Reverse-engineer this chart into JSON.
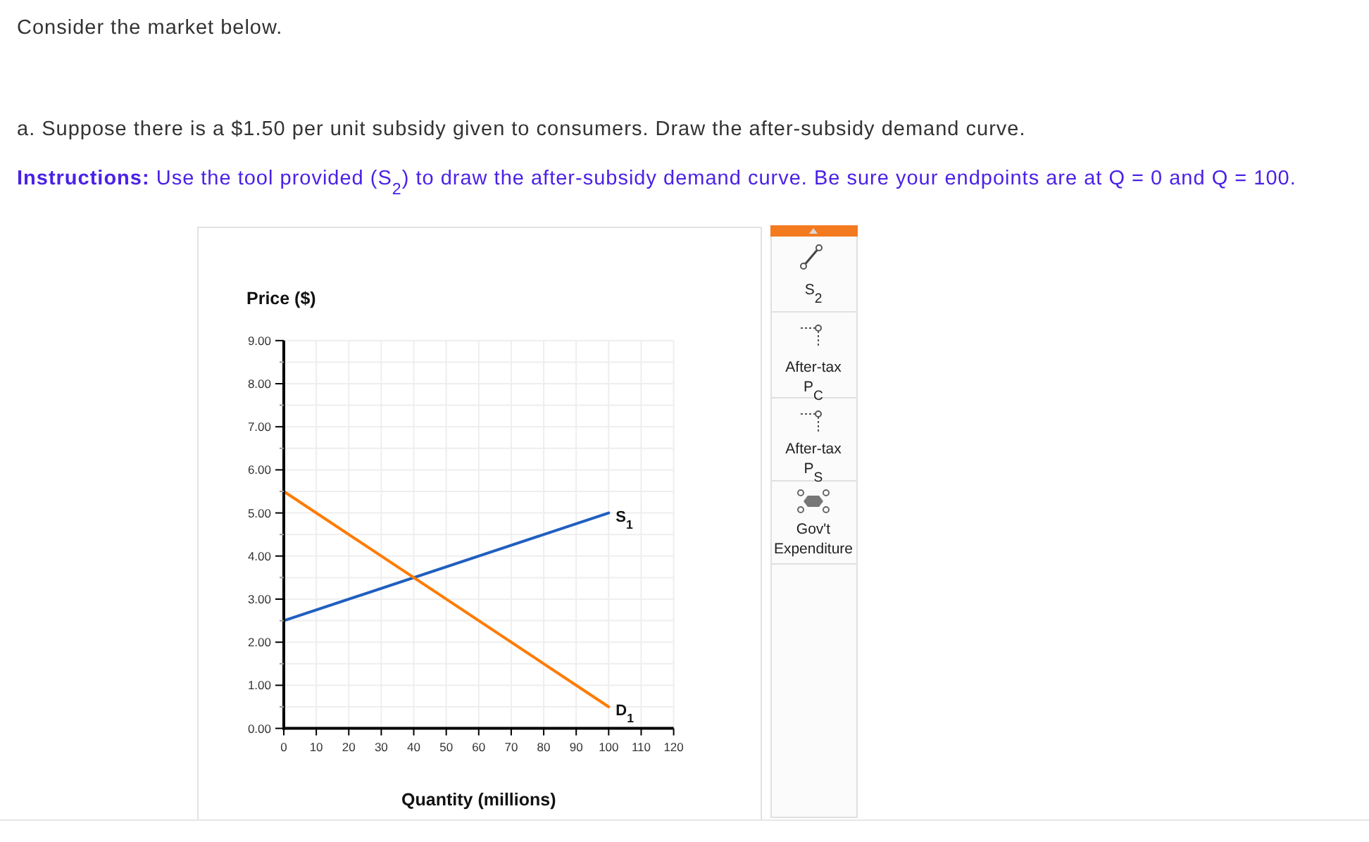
{
  "chart_data": {
    "type": "line",
    "xlabel": "Quantity (millions)",
    "ylabel": "Price ($)",
    "annotations": [
      "Consider the market below.",
      "a. Suppose there is a $1.50 per unit subsidy given to consumers. Draw the after-subsidy demand curve.",
      "Instructions:",
      "Use the tool provided (S$_{2}$) to draw the after-subsidy demand curve. Be sure your endpoints are at Q = 0 and Q = 100.",
      "S$_{2}$",
      "After-tax P$_{C}$",
      "After-tax P$_{S}$",
      "Gov't Expenditure"
    ],
    "x": [
      0,
      100
    ],
    "series": [
      {
        "name": "S$_{1}$",
        "color": "#1f5fbf",
        "values": [
          2.5,
          5
        ]
      },
      {
        "name": "D$_{1}$",
        "color": "#ff7b00",
        "values": [
          5.5,
          0.5
        ]
      }
    ],
    "xlim": [
      0,
      120
    ],
    "xticks": [
      0,
      10,
      20,
      30,
      40,
      50,
      60,
      70,
      80,
      90,
      100,
      110,
      120
    ],
    "ylim": [
      0,
      9
    ],
    "yticks": [
      {
        "value": 0,
        "label": "0.00"
      },
      {
        "value": 0.5,
        "label": null
      },
      {
        "value": 1,
        "label": "1.00"
      },
      {
        "value": 1.5,
        "label": null
      },
      {
        "value": 2,
        "label": "2.00"
      },
      {
        "value": 2.5,
        "label": null
      },
      {
        "value": 3,
        "label": "3.00"
      },
      {
        "value": 3.5,
        "label": null
      },
      {
        "value": 4,
        "label": "4.00"
      },
      {
        "value": 4.5,
        "label": null
      },
      {
        "value": 5,
        "label": "5.00"
      },
      {
        "value": 5.5,
        "label": null
      },
      {
        "value": 6,
        "label": "6.00"
      },
      {
        "value": 6.5,
        "label": null
      },
      {
        "value": 7,
        "label": "7.00"
      },
      {
        "value": 7.5,
        "label": null
      },
      {
        "value": 8,
        "label": "8.00"
      },
      {
        "value": 8.5,
        "label": null
      },
      {
        "value": 9,
        "label": "9.00"
      }
    ],
    "grid": true
  }
}
